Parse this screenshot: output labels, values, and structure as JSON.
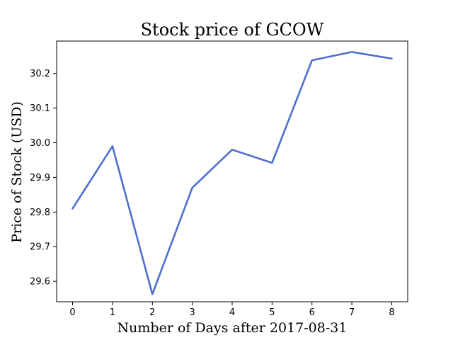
{
  "chart_data": {
    "type": "line",
    "title": "Stock price of GCOW",
    "xlabel": "Number of Days after 2017-08-31",
    "ylabel": "Price of Stock (USD)",
    "x": [
      0,
      1,
      2,
      3,
      4,
      5,
      6,
      7,
      8
    ],
    "series": [
      {
        "values": [
          29.81,
          29.99,
          29.563,
          29.87,
          29.98,
          29.942,
          30.238,
          30.262,
          30.243
        ]
      }
    ],
    "xticks": [
      "0",
      "1",
      "2",
      "3",
      "4",
      "5",
      "6",
      "7",
      "8"
    ],
    "yticks": [
      "29.6",
      "29.7",
      "29.8",
      "29.9",
      "30.0",
      "30.1",
      "30.2"
    ],
    "xlim": [
      -0.4,
      8.4
    ],
    "ylim": [
      29.541,
      30.2935
    ],
    "grid": false,
    "colors": {
      "line": "#4c6fcf"
    }
  }
}
